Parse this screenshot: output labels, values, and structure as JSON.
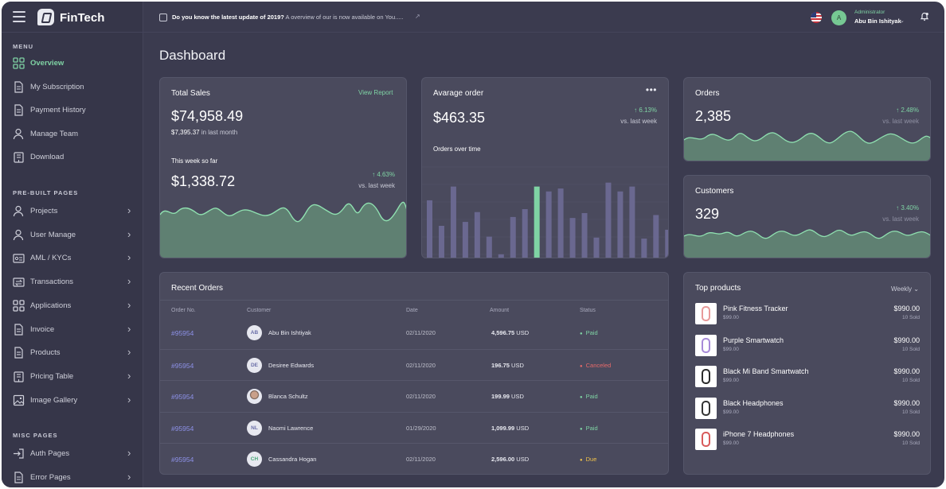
{
  "app": {
    "brand": "FinTech"
  },
  "topbar": {
    "news_bold": "Do you know the latest update of 2019?",
    "news_rest": "A overview of our is now available on You.....",
    "user_role": "Administrator",
    "user_name": "Abu Bin Ishityak",
    "avatar_initial": "A"
  },
  "sidebar": {
    "menu_title": "MENU",
    "menu": [
      {
        "label": "Overview",
        "icon": "grid-icon",
        "active": true
      },
      {
        "label": "My Subscription",
        "icon": "document-icon"
      },
      {
        "label": "Payment History",
        "icon": "document-icon"
      },
      {
        "label": "Manage Team",
        "icon": "user-icon"
      },
      {
        "label": "Download",
        "icon": "building-icon"
      }
    ],
    "prebuilt_title": "PRE-BUILT PAGES",
    "prebuilt": [
      {
        "label": "Projects",
        "icon": "user-icon"
      },
      {
        "label": "User Manage",
        "icon": "user-icon"
      },
      {
        "label": "AML / KYCs",
        "icon": "id-card-icon"
      },
      {
        "label": "Transactions",
        "icon": "transfer-icon"
      },
      {
        "label": "Applications",
        "icon": "grid-icon"
      },
      {
        "label": "Invoice",
        "icon": "document-icon"
      },
      {
        "label": "Products",
        "icon": "document-icon"
      },
      {
        "label": "Pricing Table",
        "icon": "building-icon"
      },
      {
        "label": "Image Gallery",
        "icon": "image-icon"
      }
    ],
    "misc_title": "MISC PAGES",
    "misc": [
      {
        "label": "Auth Pages",
        "icon": "login-icon"
      },
      {
        "label": "Error Pages",
        "icon": "document-icon"
      }
    ]
  },
  "page": {
    "title": "Dashboard"
  },
  "total_sales": {
    "title": "Total Sales",
    "link": "View Report",
    "value": "$74,958.49",
    "sub_value": "$7,395.37",
    "sub_label": "in last month",
    "week_label": "This week so far",
    "week_value": "$1,338.72",
    "change": "4.63%",
    "change_label": "vs. last week"
  },
  "avg_order": {
    "title": "Avarage order",
    "more": "•••",
    "value": "$463.35",
    "change": "6.13%",
    "change_label": "vs. last week",
    "chart_label": "Orders over time"
  },
  "orders_card": {
    "title": "Orders",
    "value": "2,385",
    "change": "2.48%",
    "change_label": "vs. last week"
  },
  "customers_card": {
    "title": "Customers",
    "value": "329",
    "change": "3.40%",
    "change_label": "vs. last week"
  },
  "recent_orders": {
    "title": "Recent Orders",
    "headers": [
      "Order No.",
      "Customer",
      "Date",
      "Amount",
      "Status"
    ],
    "rows": [
      {
        "id": "#95954",
        "initials": "AB",
        "customer": "Abu Bin Ishtiyak",
        "date": "02/11/2020",
        "amount": "4,596.75",
        "currency": "USD",
        "status": "Paid"
      },
      {
        "id": "#95954",
        "initials": "DE",
        "customer": "Desiree Edwards",
        "date": "02/11/2020",
        "amount": "196.75",
        "currency": "USD",
        "status": "Canceled"
      },
      {
        "id": "#95954",
        "initials": "",
        "customer": "Blanca Schultz",
        "date": "02/11/2020",
        "amount": "199.99",
        "currency": "USD",
        "status": "Paid"
      },
      {
        "id": "#95954",
        "initials": "NL",
        "customer": "Naomi Lawrence",
        "date": "01/29/2020",
        "amount": "1,099.99",
        "currency": "USD",
        "status": "Paid"
      },
      {
        "id": "#95954",
        "initials": "CH",
        "customer": "Cassandra Hogan",
        "date": "02/11/2020",
        "amount": "2,596.00",
        "currency": "USD",
        "status": "Due"
      }
    ],
    "status_colors": {
      "Paid": "#7fd3a4",
      "Canceled": "#e86a6a",
      "Due": "#f0c24a"
    }
  },
  "top_products": {
    "title": "Top products",
    "filter": "Weekly",
    "items": [
      {
        "name": "Pink Fitness Tracker",
        "price": "$99.00",
        "total": "$990.00",
        "sold": "10 Sold",
        "color": "#e89a9a"
      },
      {
        "name": "Purple Smartwatch",
        "price": "$99.00",
        "total": "$990.00",
        "sold": "10 Sold",
        "color": "#a78ad8"
      },
      {
        "name": "Black Mi Band Smartwatch",
        "price": "$99.00",
        "total": "$990.00",
        "sold": "10 Sold",
        "color": "#2a2a2a"
      },
      {
        "name": "Black Headphones",
        "price": "$99.00",
        "total": "$990.00",
        "sold": "10 Sold",
        "color": "#333333"
      },
      {
        "name": "iPhone 7 Headphones",
        "price": "$99.00",
        "total": "$990.00",
        "sold": "10 Sold",
        "color": "#d85a5a"
      }
    ]
  },
  "colors": {
    "accent": "#7fd3a4",
    "bar": "#6a6890",
    "bar_highlight": "#7fd3a4",
    "area_fill": "#5f8072",
    "area_line": "#8fe0b0"
  }
}
